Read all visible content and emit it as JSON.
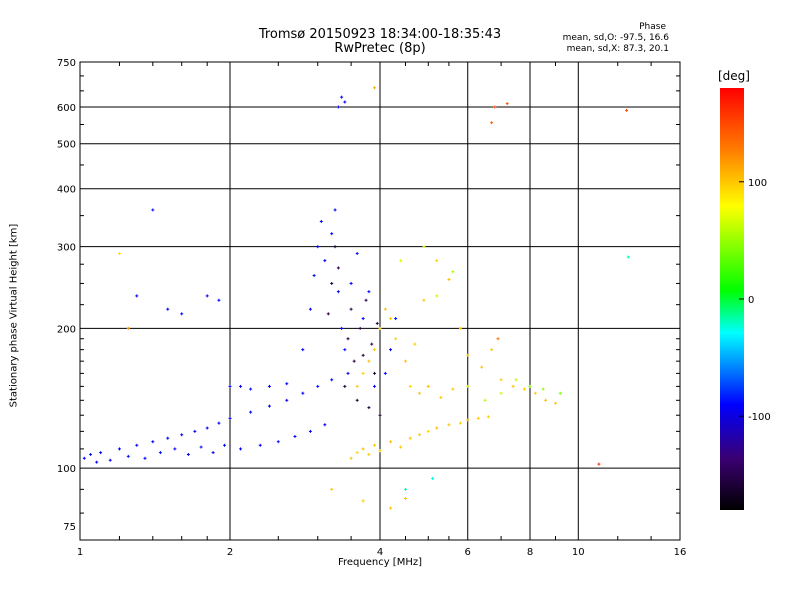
{
  "chart_data": {
    "type": "scatter",
    "title": "Tromsø 20150923 18:34:00-18:35:43",
    "subtitle": "RwPretec (8p)",
    "xlabel": "Frequency [MHz]",
    "ylabel": "Stationary phase Virtual Height [km]",
    "x_scale": "log",
    "y_scale": "log",
    "xlim": [
      1,
      16
    ],
    "ylim": [
      70,
      750
    ],
    "x_ticks": [
      1,
      2,
      4,
      6,
      8,
      10,
      16
    ],
    "y_ticks": [
      75,
      100,
      200,
      300,
      400,
      500,
      600,
      750
    ],
    "grid": true,
    "stats": {
      "heading": "Phase",
      "o_mode": "mean, sd,O: -97.5, 16.6",
      "x_mode": "mean, sd,X:  87.3, 20.1"
    },
    "colorbar": {
      "unit": "[deg]",
      "range": [
        -180,
        180
      ],
      "ticks": [
        100,
        0,
        -100
      ],
      "tick_labels": [
        "100",
        "0",
        "-100"
      ]
    },
    "series": [
      {
        "points": [
          [
            1.02,
            105,
            -100
          ],
          [
            1.05,
            107,
            -95
          ],
          [
            1.08,
            103,
            -102
          ],
          [
            1.1,
            108,
            -98
          ],
          [
            1.15,
            104,
            -105
          ],
          [
            1.2,
            110,
            -100
          ],
          [
            1.25,
            106,
            -97
          ],
          [
            1.3,
            112,
            -103
          ],
          [
            1.35,
            105,
            -99
          ],
          [
            1.4,
            114,
            -101
          ],
          [
            1.45,
            108,
            -96
          ],
          [
            1.5,
            116,
            -104
          ],
          [
            1.55,
            110,
            -100
          ],
          [
            1.6,
            118,
            -98
          ],
          [
            1.65,
            107,
            -102
          ],
          [
            1.7,
            120,
            -100
          ],
          [
            1.75,
            111,
            -95
          ],
          [
            1.8,
            122,
            -103
          ],
          [
            1.85,
            108,
            -99
          ],
          [
            1.9,
            125,
            -101
          ],
          [
            1.95,
            112,
            -97
          ],
          [
            2.0,
            128,
            -104
          ],
          [
            2.1,
            110,
            -100
          ],
          [
            2.2,
            132,
            -98
          ],
          [
            2.3,
            112,
            -102
          ],
          [
            2.4,
            136,
            -100
          ],
          [
            2.5,
            114,
            -96
          ],
          [
            2.6,
            140,
            -105
          ],
          [
            2.7,
            117,
            -99
          ],
          [
            2.8,
            145,
            -101
          ],
          [
            2.9,
            120,
            -100
          ],
          [
            3.0,
            150,
            -97
          ],
          [
            3.1,
            124,
            -103
          ],
          [
            3.2,
            155,
            -98
          ],
          [
            1.3,
            235,
            -100
          ],
          [
            1.4,
            360,
            -95
          ],
          [
            1.5,
            220,
            -102
          ],
          [
            1.6,
            215,
            -99
          ],
          [
            1.8,
            235,
            -104
          ],
          [
            1.9,
            230,
            -100
          ],
          [
            2.0,
            150,
            -98
          ],
          [
            2.1,
            150,
            -101
          ],
          [
            2.2,
            148,
            -97
          ],
          [
            2.4,
            150,
            -103
          ],
          [
            2.6,
            152,
            -99
          ],
          [
            2.8,
            180,
            -100
          ],
          [
            2.9,
            220,
            -105
          ],
          [
            2.95,
            260,
            -96
          ],
          [
            3.0,
            300,
            -102
          ],
          [
            3.05,
            340,
            -100
          ],
          [
            3.1,
            280,
            -98
          ],
          [
            3.2,
            320,
            -103
          ],
          [
            3.25,
            360,
            -101
          ],
          [
            3.3,
            240,
            -99
          ],
          [
            3.35,
            200,
            -100
          ],
          [
            3.4,
            180,
            -97
          ],
          [
            3.45,
            160,
            -104
          ],
          [
            3.3,
            600,
            -100
          ],
          [
            3.35,
            630,
            -98
          ],
          [
            3.4,
            615,
            -102
          ],
          [
            3.5,
            250,
            -100
          ],
          [
            3.6,
            290,
            -95
          ],
          [
            3.7,
            210,
            -101
          ],
          [
            3.8,
            240,
            -99
          ],
          [
            4.0,
            200,
            -100
          ],
          [
            4.2,
            180,
            -103
          ],
          [
            4.3,
            210,
            -98
          ],
          [
            4.1,
            160,
            -100
          ],
          [
            3.9,
            150,
            -97
          ]
        ]
      },
      {
        "points": [
          [
            3.4,
            150,
            -160
          ],
          [
            3.45,
            190,
            -155
          ],
          [
            3.5,
            220,
            -150
          ],
          [
            3.55,
            170,
            -158
          ],
          [
            3.6,
            140,
            -162
          ],
          [
            3.65,
            200,
            -148
          ],
          [
            3.7,
            175,
            -156
          ],
          [
            3.75,
            230,
            -152
          ],
          [
            3.8,
            135,
            -160
          ],
          [
            3.85,
            185,
            -150
          ],
          [
            3.9,
            160,
            -158
          ],
          [
            3.95,
            205,
            -154
          ],
          [
            4.0,
            130,
            -160
          ],
          [
            3.3,
            270,
            -150
          ],
          [
            3.25,
            300,
            -155
          ],
          [
            3.2,
            250,
            -158
          ],
          [
            3.15,
            215,
            -152
          ]
        ]
      },
      {
        "points": [
          [
            3.5,
            105,
            100
          ],
          [
            3.6,
            108,
            95
          ],
          [
            3.7,
            110,
            102
          ],
          [
            3.8,
            107,
            98
          ],
          [
            3.9,
            112,
            100
          ],
          [
            4.0,
            109,
            97
          ],
          [
            4.2,
            114,
            103
          ],
          [
            4.4,
            111,
            99
          ],
          [
            4.6,
            116,
            101
          ],
          [
            4.8,
            118,
            100
          ],
          [
            5.0,
            120,
            96
          ],
          [
            5.2,
            122,
            104
          ],
          [
            5.5,
            124,
            100
          ],
          [
            5.8,
            125,
            98
          ],
          [
            6.0,
            127,
            102
          ],
          [
            6.3,
            128,
            100
          ],
          [
            6.6,
            129,
            97
          ],
          [
            3.6,
            150,
            100
          ],
          [
            3.7,
            160,
            95
          ],
          [
            3.8,
            170,
            102
          ],
          [
            3.9,
            180,
            98
          ],
          [
            4.0,
            200,
            100
          ],
          [
            4.1,
            220,
            104
          ],
          [
            4.2,
            210,
            100
          ],
          [
            4.3,
            190,
            96
          ],
          [
            4.5,
            170,
            101
          ],
          [
            4.7,
            185,
            99
          ],
          [
            4.9,
            230,
            100
          ],
          [
            5.2,
            280,
            97
          ],
          [
            5.5,
            255,
            103
          ],
          [
            5.8,
            200,
            100
          ],
          [
            6.0,
            175,
            98
          ],
          [
            6.4,
            165,
            102
          ],
          [
            6.7,
            180,
            100
          ],
          [
            7.0,
            155,
            96
          ],
          [
            7.4,
            150,
            101
          ],
          [
            7.8,
            148,
            100
          ],
          [
            8.2,
            145,
            98
          ],
          [
            8.6,
            140,
            102
          ],
          [
            9.0,
            138,
            100
          ],
          [
            4.6,
            150,
            95
          ],
          [
            4.8,
            145,
            100
          ],
          [
            5.0,
            150,
            104
          ],
          [
            5.3,
            142,
            99
          ],
          [
            5.6,
            148,
            100
          ],
          [
            3.2,
            90,
            100
          ],
          [
            3.7,
            85,
            98
          ],
          [
            4.2,
            82,
            102
          ],
          [
            4.5,
            86,
            100
          ]
        ]
      },
      {
        "points": [
          [
            5.2,
            235,
            60
          ],
          [
            5.6,
            265,
            55
          ],
          [
            6.0,
            150,
            65
          ],
          [
            6.5,
            140,
            58
          ],
          [
            7.0,
            145,
            62
          ],
          [
            7.5,
            155,
            60
          ],
          [
            8.0,
            150,
            40
          ],
          [
            8.5,
            148,
            45
          ],
          [
            9.2,
            145,
            42
          ],
          [
            4.4,
            280,
            70
          ],
          [
            4.9,
            300,
            68
          ],
          [
            3.9,
            660,
            110
          ],
          [
            6.8,
            600,
            150
          ],
          [
            6.7,
            555,
            140
          ],
          [
            7.2,
            610,
            145
          ],
          [
            12.5,
            590,
            150
          ],
          [
            11.0,
            102,
            160
          ],
          [
            6.9,
            190,
            130
          ],
          [
            1.2,
            290,
            90
          ],
          [
            1.25,
            200,
            120
          ],
          [
            12.6,
            285,
            -20
          ],
          [
            4.5,
            90,
            -20
          ],
          [
            5.1,
            95,
            -25
          ]
        ]
      }
    ]
  }
}
